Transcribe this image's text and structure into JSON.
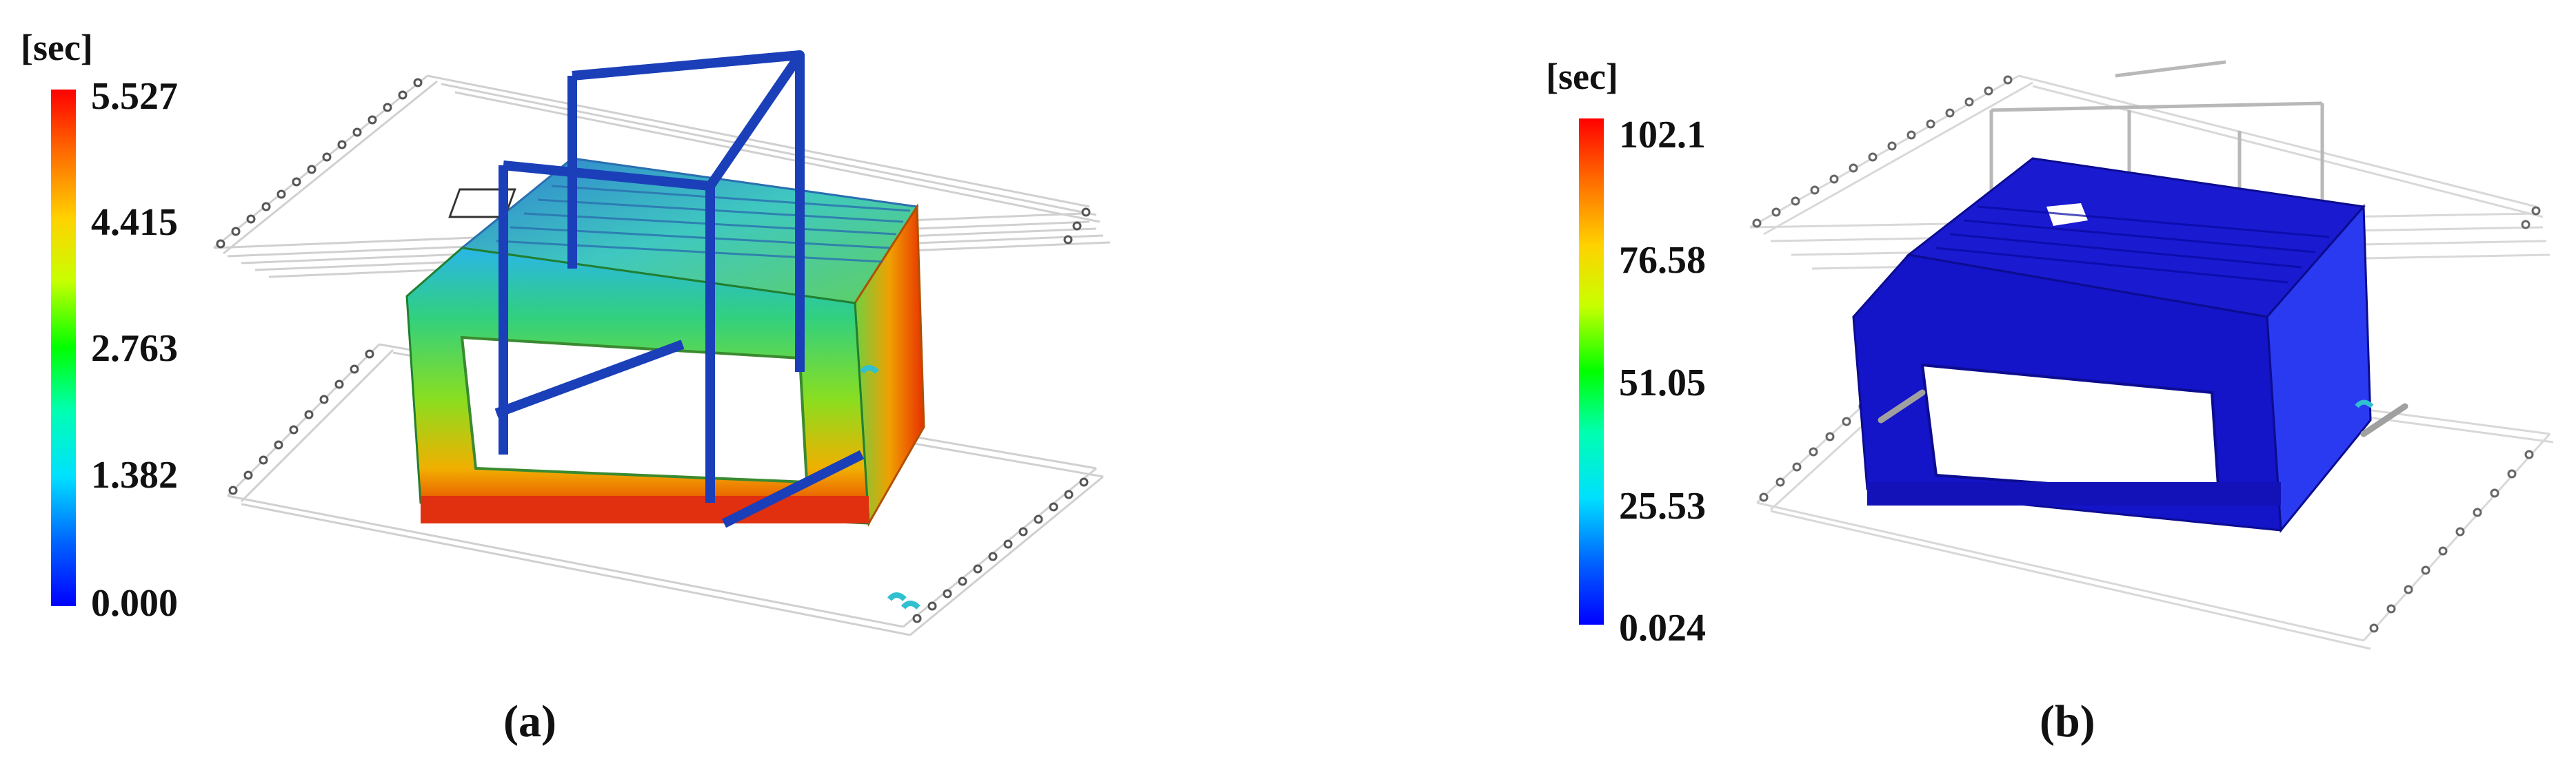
{
  "panel_a": {
    "unit": "[sec]",
    "ticks": [
      "5.527",
      "4.415",
      "2.763",
      "1.382",
      "0.000"
    ],
    "caption": "(a)"
  },
  "panel_b": {
    "unit": "[sec]",
    "ticks": [
      "102.1",
      "76.58",
      "51.05",
      "25.53",
      "0.024"
    ],
    "caption": "(b)"
  },
  "colors": {
    "colormap_top": "#ff0000",
    "colormap_mid": "#00ff00",
    "colormap_bottom": "#0000ff",
    "cooling_channel": "#1a3fb8",
    "part_b": "#1a1ad8"
  }
}
